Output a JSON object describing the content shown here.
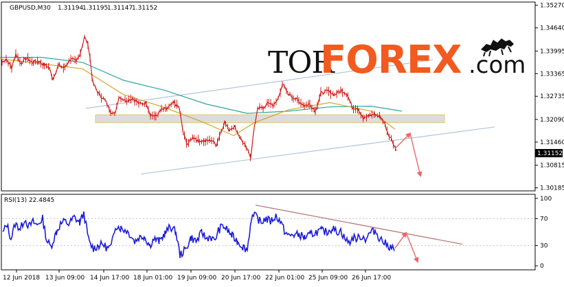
{
  "chart_data": [
    {
      "type": "candlestick",
      "title": "GBPUSD,M30",
      "ohlc_header": [
        "1.31194",
        "1.31195",
        "1.31147",
        "1.31152"
      ],
      "current_price_label": "1.31152",
      "ylim": [
        1.3012,
        1.3534
      ],
      "y_ticks": [
        "1.35270",
        "1.34640",
        "1.33995",
        "1.33365",
        "1.32735",
        "1.32090",
        "1.31460",
        "1.30815",
        "1.30185"
      ],
      "x_tick_labels": [
        "12 Jun 2018",
        "13 Jun 09:00",
        "14 Jun 17:00",
        "18 Jun 01:00",
        "19 Jun 09:00",
        "20 Jun 17:00",
        "22 Jun 01:00",
        "25 Jun 09:00",
        "26 Jun 17:00"
      ],
      "price_path": [
        [
          0,
          1.3368
        ],
        [
          6,
          1.3378
        ],
        [
          14,
          1.3352
        ],
        [
          20,
          1.3392
        ],
        [
          27,
          1.3365
        ],
        [
          36,
          1.338
        ],
        [
          44,
          1.3368
        ],
        [
          52,
          1.3372
        ],
        [
          60,
          1.3362
        ],
        [
          68,
          1.3355
        ],
        [
          74,
          1.3322
        ],
        [
          82,
          1.336
        ],
        [
          90,
          1.3352
        ],
        [
          100,
          1.3378
        ],
        [
          108,
          1.337
        ],
        [
          114,
          1.3395
        ],
        [
          120,
          1.3438
        ],
        [
          125,
          1.342
        ],
        [
          128,
          1.338
        ],
        [
          132,
          1.3312
        ],
        [
          140,
          1.3282
        ],
        [
          150,
          1.3262
        ],
        [
          158,
          1.3232
        ],
        [
          164,
          1.3222
        ],
        [
          170,
          1.3272
        ],
        [
          180,
          1.3262
        ],
        [
          190,
          1.3268
        ],
        [
          200,
          1.3252
        ],
        [
          210,
          1.3255
        ],
        [
          216,
          1.3222
        ],
        [
          224,
          1.3218
        ],
        [
          232,
          1.3236
        ],
        [
          240,
          1.3238
        ],
        [
          250,
          1.3256
        ],
        [
          258,
          1.324
        ],
        [
          264,
          1.3168
        ],
        [
          270,
          1.314
        ],
        [
          278,
          1.316
        ],
        [
          286,
          1.315
        ],
        [
          296,
          1.3148
        ],
        [
          305,
          1.3152
        ],
        [
          312,
          1.3138
        ],
        [
          318,
          1.3172
        ],
        [
          324,
          1.3202
        ],
        [
          330,
          1.318
        ],
        [
          338,
          1.319
        ],
        [
          346,
          1.316
        ],
        [
          354,
          1.3135
        ],
        [
          362,
          1.3105
        ],
        [
          366,
          1.317
        ],
        [
          372,
          1.3242
        ],
        [
          380,
          1.324
        ],
        [
          388,
          1.3256
        ],
        [
          396,
          1.3248
        ],
        [
          402,
          1.3268
        ],
        [
          408,
          1.3308
        ],
        [
          416,
          1.3282
        ],
        [
          424,
          1.327
        ],
        [
          432,
          1.326
        ],
        [
          440,
          1.3248
        ],
        [
          448,
          1.3252
        ],
        [
          456,
          1.3232
        ],
        [
          464,
          1.3282
        ],
        [
          474,
          1.3288
        ],
        [
          484,
          1.3278
        ],
        [
          494,
          1.329
        ],
        [
          502,
          1.328
        ],
        [
          510,
          1.3242
        ],
        [
          518,
          1.324
        ],
        [
          526,
          1.321
        ],
        [
          534,
          1.322
        ],
        [
          542,
          1.3224
        ],
        [
          550,
          1.3218
        ],
        [
          556,
          1.3202
        ],
        [
          562,
          1.317
        ],
        [
          568,
          1.315
        ],
        [
          574,
          1.3122
        ]
      ],
      "moving_average_slow": [
        [
          0,
          1.3382
        ],
        [
          60,
          1.3382
        ],
        [
          120,
          1.3368
        ],
        [
          180,
          1.3318
        ],
        [
          240,
          1.329
        ],
        [
          300,
          1.3252
        ],
        [
          360,
          1.3226
        ],
        [
          420,
          1.3232
        ],
        [
          480,
          1.3244
        ],
        [
          540,
          1.3246
        ],
        [
          585,
          1.3232
        ]
      ],
      "moving_average_fast": [
        [
          0,
          1.3378
        ],
        [
          60,
          1.3364
        ],
        [
          120,
          1.335
        ],
        [
          180,
          1.3278
        ],
        [
          240,
          1.3242
        ],
        [
          300,
          1.3198
        ],
        [
          340,
          1.3164
        ],
        [
          370,
          1.32
        ],
        [
          420,
          1.3236
        ],
        [
          480,
          1.3256
        ],
        [
          540,
          1.3232
        ],
        [
          575,
          1.3182
        ]
      ],
      "support_zone": [
        1.32,
        1.3222
      ],
      "forecast_arrows": [
        [
          [
            575,
            1.3128
          ],
          [
            597,
            1.317
          ]
        ],
        [
          [
            597,
            1.317
          ],
          [
            612,
            1.3052
          ]
        ]
      ],
      "trend_lines": [
        [
          [
            125,
            1.324
          ],
          [
            630,
            1.3375
          ]
        ],
        [
          [
            205,
            1.3057
          ],
          [
            720,
            1.3188
          ]
        ]
      ],
      "grid": false,
      "colors": {
        "candle": "#d11b1b",
        "slow_ma": "#2aa5a0",
        "fast_ma": "#d4a42a",
        "trend_line": "#b0c4d8",
        "zone": "#d6d6d6",
        "zone_border": "#e5c46a",
        "arrow": "#f06565",
        "axis": "#000000"
      }
    },
    {
      "type": "line",
      "title": "RSI(13) 22.4845",
      "ylim": [
        -5,
        105
      ],
      "y_ticks": [
        "100",
        "70",
        "30",
        "0"
      ],
      "rsi_path": [
        [
          4,
          48
        ],
        [
          10,
          62
        ],
        [
          16,
          40
        ],
        [
          22,
          62
        ],
        [
          30,
          55
        ],
        [
          36,
          70
        ],
        [
          42,
          58
        ],
        [
          48,
          65
        ],
        [
          54,
          60
        ],
        [
          62,
          70
        ],
        [
          68,
          38
        ],
        [
          74,
          28
        ],
        [
          82,
          50
        ],
        [
          88,
          62
        ],
        [
          94,
          66
        ],
        [
          100,
          62
        ],
        [
          108,
          72
        ],
        [
          116,
          64
        ],
        [
          122,
          78
        ],
        [
          126,
          56
        ],
        [
          130,
          34
        ],
        [
          136,
          26
        ],
        [
          144,
          30
        ],
        [
          150,
          32
        ],
        [
          156,
          26
        ],
        [
          162,
          28
        ],
        [
          168,
          60
        ],
        [
          176,
          56
        ],
        [
          184,
          52
        ],
        [
          190,
          46
        ],
        [
          196,
          36
        ],
        [
          202,
          42
        ],
        [
          210,
          44
        ],
        [
          218,
          30
        ],
        [
          224,
          40
        ],
        [
          232,
          36
        ],
        [
          240,
          48
        ],
        [
          248,
          58
        ],
        [
          256,
          50
        ],
        [
          262,
          16
        ],
        [
          270,
          24
        ],
        [
          278,
          42
        ],
        [
          286,
          36
        ],
        [
          294,
          50
        ],
        [
          300,
          40
        ],
        [
          306,
          44
        ],
        [
          312,
          36
        ],
        [
          318,
          52
        ],
        [
          324,
          60
        ],
        [
          330,
          54
        ],
        [
          338,
          44
        ],
        [
          346,
          36
        ],
        [
          354,
          28
        ],
        [
          360,
          24
        ],
        [
          366,
          72
        ],
        [
          372,
          74
        ],
        [
          380,
          64
        ],
        [
          386,
          70
        ],
        [
          394,
          66
        ],
        [
          402,
          74
        ],
        [
          408,
          66
        ],
        [
          414,
          52
        ],
        [
          420,
          44
        ],
        [
          428,
          46
        ],
        [
          436,
          46
        ],
        [
          444,
          42
        ],
        [
          452,
          46
        ],
        [
          460,
          50
        ],
        [
          468,
          52
        ],
        [
          476,
          50
        ],
        [
          484,
          56
        ],
        [
          490,
          50
        ],
        [
          496,
          52
        ],
        [
          502,
          40
        ],
        [
          508,
          34
        ],
        [
          514,
          42
        ],
        [
          520,
          40
        ],
        [
          526,
          44
        ],
        [
          532,
          40
        ],
        [
          540,
          50
        ],
        [
          546,
          52
        ],
        [
          552,
          42
        ],
        [
          558,
          36
        ],
        [
          564,
          30
        ],
        [
          570,
          28
        ],
        [
          574,
          22
        ]
      ],
      "trend_line": [
        [
          372,
          90
        ],
        [
          673,
          32
        ]
      ],
      "forecast_arrows": [
        [
          [
            575,
            26
          ],
          [
            591,
            49
          ]
        ],
        [
          [
            591,
            49
          ],
          [
            608,
            6
          ]
        ]
      ],
      "colors": {
        "rsi": "#1a1ad8",
        "trend_line": "#b97a7a",
        "arrow": "#f06565"
      }
    }
  ],
  "watermark": {
    "part1": "TOR",
    "part2": "FOREX",
    "part3": ".com",
    "icon": "bull-bear-icon"
  }
}
